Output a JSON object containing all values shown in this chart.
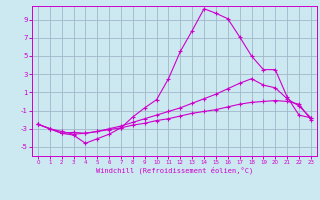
{
  "xlabel": "Windchill (Refroidissement éolien,°C)",
  "bg_color": "#cce8f0",
  "grid_color": "#a0b8c8",
  "line_color": "#cc00cc",
  "xlim": [
    -0.5,
    23.5
  ],
  "ylim": [
    -6.0,
    10.5
  ],
  "xticks": [
    0,
    1,
    2,
    3,
    4,
    5,
    6,
    7,
    8,
    9,
    10,
    11,
    12,
    13,
    14,
    15,
    16,
    17,
    18,
    19,
    20,
    21,
    22,
    23
  ],
  "yticks": [
    -5,
    -3,
    -1,
    1,
    3,
    5,
    7,
    9
  ],
  "line1_x": [
    0,
    1,
    2,
    3,
    4,
    5,
    6,
    7,
    8,
    9,
    10,
    11,
    12,
    13,
    14,
    15,
    16,
    17,
    18,
    19,
    20,
    21,
    22,
    23
  ],
  "line1_y": [
    -2.5,
    -3.0,
    -3.5,
    -3.7,
    -4.6,
    -4.1,
    -3.6,
    -2.9,
    -1.7,
    -0.7,
    0.2,
    2.5,
    5.5,
    7.8,
    10.2,
    9.7,
    9.1,
    7.1,
    5.0,
    3.5,
    3.5,
    0.5,
    -1.5,
    -1.8
  ],
  "line2_x": [
    0,
    1,
    2,
    3,
    4,
    5,
    6,
    7,
    8,
    9,
    10,
    11,
    12,
    13,
    14,
    15,
    16,
    17,
    18,
    19,
    20,
    21,
    22,
    23
  ],
  "line2_y": [
    -2.5,
    -3.0,
    -3.3,
    -3.6,
    -3.5,
    -3.3,
    -3.0,
    -2.7,
    -2.3,
    -1.9,
    -1.5,
    -1.1,
    -0.7,
    -0.2,
    0.3,
    0.8,
    1.4,
    2.0,
    2.5,
    1.8,
    1.5,
    0.3,
    -0.5,
    -1.8
  ],
  "line3_x": [
    0,
    1,
    2,
    3,
    4,
    5,
    6,
    7,
    8,
    9,
    10,
    11,
    12,
    13,
    14,
    15,
    16,
    17,
    18,
    19,
    20,
    21,
    22,
    23
  ],
  "line3_y": [
    -2.5,
    -3.0,
    -3.5,
    -3.4,
    -3.5,
    -3.3,
    -3.1,
    -2.9,
    -2.6,
    -2.4,
    -2.1,
    -1.9,
    -1.6,
    -1.3,
    -1.1,
    -0.9,
    -0.6,
    -0.3,
    -0.1,
    0.0,
    0.1,
    0.0,
    -0.3,
    -2.0
  ]
}
